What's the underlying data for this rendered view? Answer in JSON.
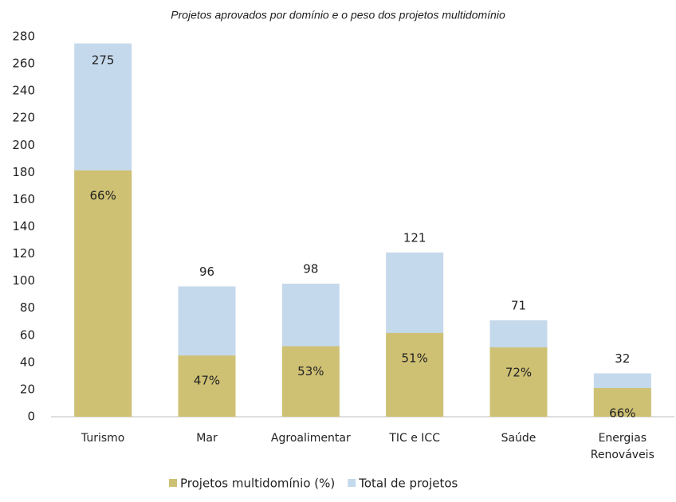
{
  "chart_data": {
    "type": "bar",
    "title": "Projetos aprovados por domínio e o peso dos projetos multidomínio",
    "categories": [
      "Turismo",
      "Mar",
      "Agroalimentar",
      "TIC e ICC",
      "Saúde",
      "Energias Renováveis"
    ],
    "series": [
      {
        "name": "Projetos multidomínio (%)",
        "color": "#cfc174",
        "values": [
          66,
          47,
          53,
          51,
          72,
          66
        ],
        "value_labels": [
          "66%",
          "47%",
          "53%",
          "51%",
          "72%",
          "66%"
        ]
      },
      {
        "name": "Total de projetos",
        "color": "#c5d9ec",
        "values": [
          275,
          96,
          98,
          121,
          71,
          32
        ]
      }
    ],
    "ylim": [
      0,
      280
    ],
    "yticks": [
      0,
      20,
      40,
      60,
      80,
      100,
      120,
      140,
      160,
      180,
      200,
      220,
      240,
      260,
      280
    ]
  }
}
